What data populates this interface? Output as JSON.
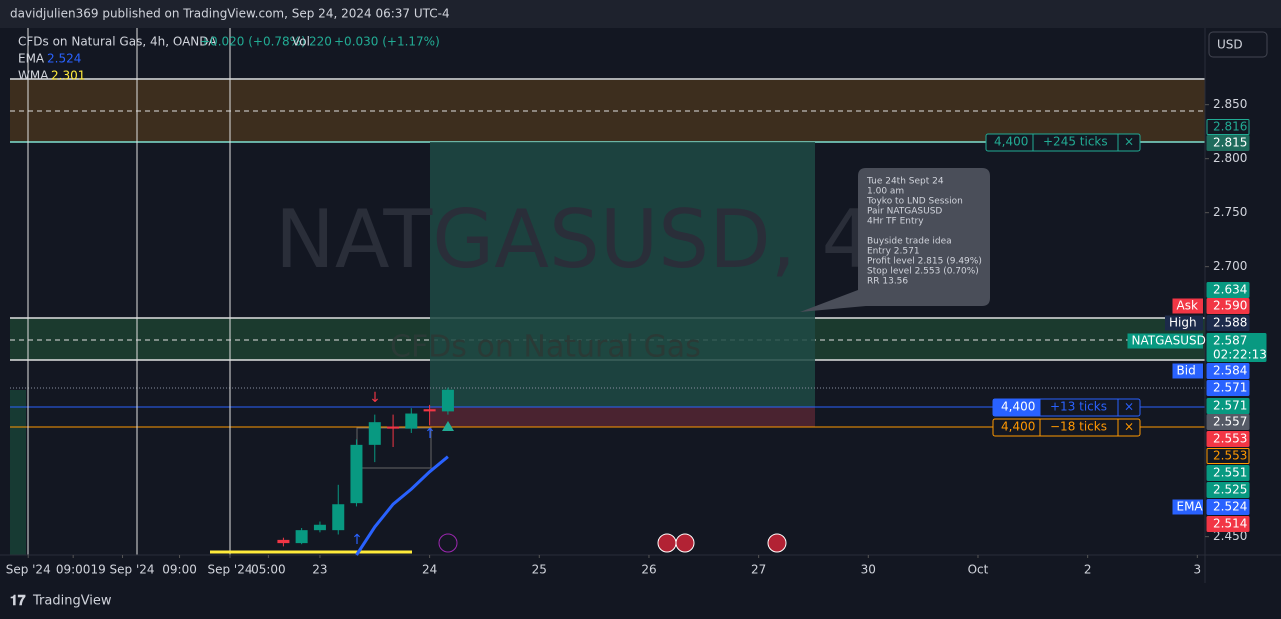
{
  "chart_data": {
    "type": "candlestick",
    "header": "davidjulien369 published on TradingView.com, Sep 24, 2024 06:37 UTC-4",
    "legend": {
      "symbol": "CFDs on Natural Gas, 4h, OANDA",
      "change": "+0.020 (+0.78%)",
      "vol_label": "Vol",
      "vol": "220",
      "vol_change": "+0.030 (+1.17%)",
      "ema_label": "EMA",
      "ema": "2.524",
      "wma_label": "WMA",
      "wma": "2.301"
    },
    "watermark": {
      "symbol": "NATGASUSD, 4",
      "description": "CFDs on Natural Gas"
    },
    "currency": "USD",
    "brand": "TradingView",
    "up_color": "#089981",
    "down_color": "#f23645",
    "x": [
      -0.333,
      -0.167,
      0,
      0.167,
      0.333,
      0.5,
      0.667,
      0.833,
      1.0,
      1.167
    ],
    "open": [
      2.447,
      2.444,
      2.456,
      2.456,
      2.481,
      2.535,
      2.552,
      2.55,
      2.568,
      2.566
    ],
    "high": [
      2.449,
      2.458,
      2.464,
      2.498,
      2.54,
      2.563,
      2.563,
      2.569,
      2.572,
      2.588
    ],
    "low": [
      2.441,
      2.443,
      2.454,
      2.452,
      2.478,
      2.519,
      2.533,
      2.546,
      2.553,
      2.563
    ],
    "close": [
      2.444,
      2.456,
      2.461,
      2.48,
      2.535,
      2.556,
      2.55,
      2.564,
      2.566,
      2.586
    ],
    "series": [
      {
        "name": "EMA",
        "color": "#2962ff",
        "values": [
          null,
          null,
          null,
          null,
          2.433,
          2.459,
          2.48,
          2.494,
          2.51,
          2.524
        ]
      }
    ],
    "xlim": [
      -2.826,
      8.07
    ],
    "xticks": [
      {
        "value": -2.66,
        "label": "Sep '24"
      },
      {
        "value": -2.25,
        "label": "09:00"
      },
      {
        "value": -1.8,
        "label": "19 Sep '24"
      },
      {
        "value": -1.28,
        "label": "09:00"
      },
      {
        "value": -0.82,
        "label": "Sep '24"
      },
      {
        "value": -0.47,
        "label": "05:00"
      },
      {
        "value": 0,
        "label": "23"
      },
      {
        "value": 1,
        "label": "24"
      },
      {
        "value": 2,
        "label": "25"
      },
      {
        "value": 3,
        "label": "26"
      },
      {
        "value": 4,
        "label": "27"
      },
      {
        "value": 5,
        "label": "30"
      },
      {
        "value": 6,
        "label": "Oct"
      },
      {
        "value": 7,
        "label": "2"
      },
      {
        "value": 8,
        "label": "3"
      }
    ],
    "ylim": [
      2.433,
      2.921
    ],
    "yticks": [
      {
        "value": 2.45,
        "label": "2.450"
      },
      {
        "value": 2.7,
        "label": "2.700"
      },
      {
        "value": 2.75,
        "label": "2.750"
      },
      {
        "value": 2.8,
        "label": "2.800"
      },
      {
        "value": 2.85,
        "label": "2.850"
      }
    ],
    "annotation": [
      "Tue 24th Sept 24",
      "1.00 am",
      "Toyko to LND Session",
      "Pair NATGASUSD",
      "4Hr TF Entry",
      "",
      "Buyside trade idea",
      "Entry 2.571",
      "Profit level 2.815 (9.49%)",
      "Stop level 2.553 (0.70%)",
      "RR 13.56"
    ],
    "positions": [
      {
        "qty": "4,400",
        "ticks": "+245 ticks",
        "color": "#22ab94"
      },
      {
        "qty": "4,400",
        "ticks": "+13 ticks",
        "color": "#2962ff"
      },
      {
        "qty": "4,400",
        "ticks": "−18 ticks",
        "color": "#ff9800"
      }
    ],
    "price_labels": [
      {
        "text": "2.816",
        "color": "#22ab94",
        "outline": true
      },
      {
        "text": "2.815",
        "color": "#1e6b5c"
      },
      {
        "text": "2.634",
        "color": "#089981"
      },
      {
        "tag": "Ask",
        "text": "2.590",
        "color": "#f23645"
      },
      {
        "tag": "High",
        "text": "2.588",
        "color": "#1c2a4a"
      },
      {
        "tag": "NATGASUSD",
        "text": "2.587",
        "sub": "02:22:13",
        "color": "#089981"
      },
      {
        "tag": "Bid",
        "text": "2.584",
        "color": "#2962ff"
      },
      {
        "text": "2.571",
        "color": "#2962ff"
      },
      {
        "text": "2.571",
        "color": "#089981"
      },
      {
        "text": "2.557",
        "color": "#555a66"
      },
      {
        "text": "2.553",
        "color": "#f23645"
      },
      {
        "text": "2.553",
        "color": "#ff9800",
        "outline": true
      },
      {
        "text": "2.551",
        "color": "#089981"
      },
      {
        "text": "2.525",
        "color": "#089981"
      },
      {
        "tag": "EMA",
        "text": "2.524",
        "color": "#2962ff"
      },
      {
        "text": "2.514",
        "color": "#f23645"
      }
    ]
  }
}
